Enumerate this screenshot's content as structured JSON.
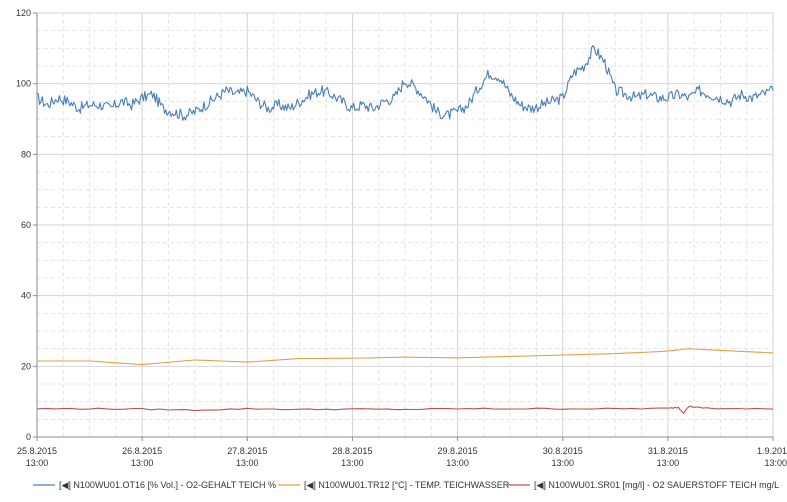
{
  "chart_data": {
    "type": "line",
    "title": "",
    "xlabel": "",
    "ylabel": "",
    "ylim": [
      0,
      120
    ],
    "yticks": [
      0,
      20,
      40,
      60,
      80,
      100,
      120
    ],
    "xlim_days": [
      0,
      7
    ],
    "xticks": [
      {
        "date": "25.8.2015",
        "time": "13:00"
      },
      {
        "date": "26.8.2015",
        "time": "13:00"
      },
      {
        "date": "27.8.2015",
        "time": "13:00"
      },
      {
        "date": "28.8.2015",
        "time": "13:00"
      },
      {
        "date": "29.8.2015",
        "time": "13:00"
      },
      {
        "date": "30.8.2015",
        "time": "13:00"
      },
      {
        "date": "31.8.2015",
        "time": "13:00"
      },
      {
        "date": "1.9.201",
        "time": "13:00"
      }
    ],
    "grid": true,
    "legend_position": "bottom",
    "series": [
      {
        "name": "[◀] N100WU01.OT16 [% Vol.] - O2-GEHALT TEICH %",
        "color": "#4a7ebb",
        "x": [
          0,
          0.1,
          0.2,
          0.3,
          0.4,
          0.5,
          0.6,
          0.7,
          0.8,
          0.9,
          1,
          1.1,
          1.2,
          1.3,
          1.4,
          1.5,
          1.6,
          1.7,
          1.8,
          1.9,
          2,
          2.1,
          2.2,
          2.3,
          2.4,
          2.5,
          2.6,
          2.7,
          2.8,
          2.9,
          3,
          3.1,
          3.2,
          3.3,
          3.4,
          3.5,
          3.6,
          3.7,
          3.8,
          3.9,
          4,
          4.1,
          4.2,
          4.3,
          4.4,
          4.5,
          4.6,
          4.7,
          4.8,
          4.9,
          5,
          5.1,
          5.2,
          5.3,
          5.4,
          5.5,
          5.6,
          5.7,
          5.8,
          5.9,
          6,
          6.1,
          6.2,
          6.3,
          6.4,
          6.5,
          6.6,
          6.7,
          6.8,
          6.9,
          7
        ],
        "values": [
          96,
          94,
          96,
          95,
          93,
          94,
          94,
          93,
          95,
          94,
          96,
          97,
          93,
          92,
          91,
          92,
          94,
          96,
          98,
          97,
          98,
          95,
          93,
          94,
          93,
          95,
          97,
          98,
          97,
          95,
          93,
          94,
          93,
          95,
          96,
          101,
          99,
          96,
          92,
          91,
          92,
          94,
          99,
          103,
          102,
          97,
          94,
          93,
          94,
          95,
          96,
          103,
          105,
          110,
          106,
          98,
          97,
          96,
          97,
          96,
          96,
          97,
          96,
          98,
          97,
          96,
          95,
          97,
          96,
          97,
          98
        ]
      },
      {
        "name": "[◀] N100WU01.TR12 [°C] - TEMP. TEICHWASSER",
        "color": "#e6a04a",
        "x": [
          0,
          0.5,
          1,
          1.5,
          2,
          2.5,
          3,
          3.5,
          4,
          4.5,
          5,
          5.5,
          6,
          6.2,
          6.5,
          7
        ],
        "values": [
          21.5,
          21.5,
          20.5,
          21.8,
          21.2,
          22.2,
          22.3,
          22.6,
          22.4,
          22.8,
          23.2,
          23.6,
          24.3,
          25.0,
          24.5,
          23.8
        ]
      },
      {
        "name": "[◀] N100WU01.SR01 [mg/l] - O2 SAUERSTOFF TEICH mg/L",
        "color": "#c0504d",
        "x": [
          0,
          0.5,
          1,
          1.5,
          2,
          2.5,
          3,
          3.5,
          4,
          4.5,
          5,
          5.5,
          6,
          6.1,
          6.15,
          6.2,
          6.3,
          6.5,
          7
        ],
        "values": [
          8.0,
          8.0,
          7.9,
          7.6,
          8.0,
          7.8,
          7.9,
          7.8,
          8.0,
          8.0,
          8.0,
          8.0,
          8.1,
          8.4,
          6.8,
          8.7,
          8.3,
          8.0,
          7.9
        ]
      }
    ]
  }
}
